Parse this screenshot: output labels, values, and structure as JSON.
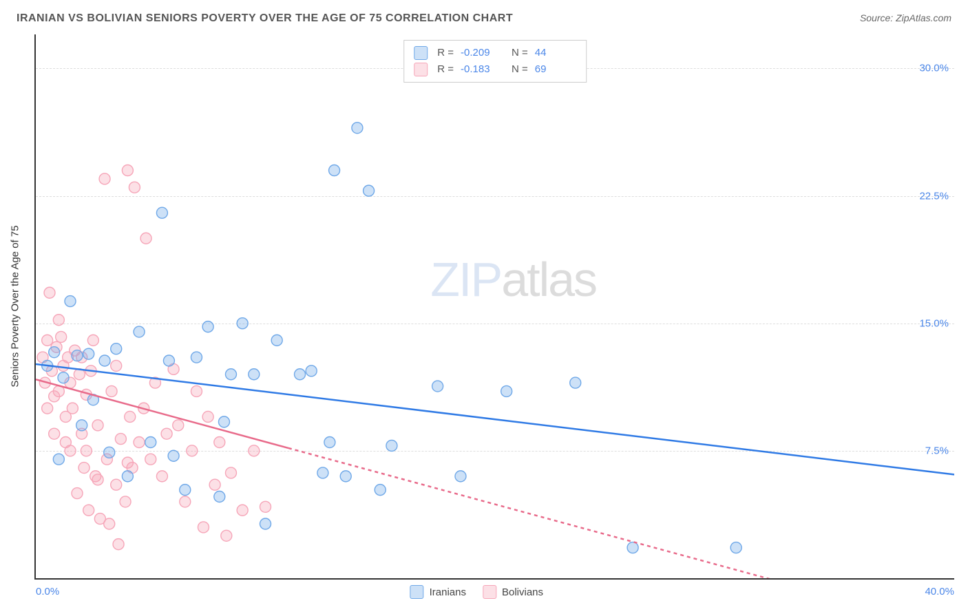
{
  "header": {
    "title": "IRANIAN VS BOLIVIAN SENIORS POVERTY OVER THE AGE OF 75 CORRELATION CHART",
    "source_prefix": "Source: ",
    "source": "ZipAtlas.com"
  },
  "watermark": {
    "zip": "ZIP",
    "atlas": "atlas"
  },
  "chart": {
    "type": "scatter",
    "ylabel": "Seniors Poverty Over the Age of 75",
    "background_color": "#ffffff",
    "grid_color": "#dddddd",
    "axis_color": "#333333",
    "tick_color": "#4a86e8",
    "xlim": [
      0,
      40
    ],
    "ylim": [
      0,
      32
    ],
    "yticks": [
      {
        "value": 7.5,
        "label": "7.5%"
      },
      {
        "value": 15.0,
        "label": "15.0%"
      },
      {
        "value": 22.5,
        "label": "22.5%"
      },
      {
        "value": 30.0,
        "label": "30.0%"
      }
    ],
    "xtick_left": "0.0%",
    "xtick_right": "40.0%",
    "marker_radius": 8,
    "marker_fill_opacity": 0.35,
    "marker_stroke_width": 1.4,
    "trendline_width": 2.5,
    "series": {
      "iranians": {
        "label": "Iranians",
        "color": "#6fa8e8",
        "line_color": "#2f7ae5",
        "R": "-0.209",
        "N": "44",
        "points": [
          [
            0.5,
            12.5
          ],
          [
            0.8,
            13.3
          ],
          [
            1.0,
            7.0
          ],
          [
            1.2,
            11.8
          ],
          [
            1.5,
            16.3
          ],
          [
            1.8,
            13.1
          ],
          [
            2.0,
            9.0
          ],
          [
            2.3,
            13.2
          ],
          [
            2.5,
            10.5
          ],
          [
            3.0,
            12.8
          ],
          [
            3.2,
            7.4
          ],
          [
            3.5,
            13.5
          ],
          [
            4.0,
            6.0
          ],
          [
            4.5,
            14.5
          ],
          [
            5.0,
            8.0
          ],
          [
            5.5,
            21.5
          ],
          [
            5.8,
            12.8
          ],
          [
            6.0,
            7.2
          ],
          [
            6.5,
            5.2
          ],
          [
            7.0,
            13.0
          ],
          [
            7.5,
            14.8
          ],
          [
            8.0,
            4.8
          ],
          [
            8.5,
            12.0
          ],
          [
            9.0,
            15.0
          ],
          [
            9.5,
            12.0
          ],
          [
            10.0,
            3.2
          ],
          [
            10.5,
            14.0
          ],
          [
            11.5,
            12.0
          ],
          [
            12.0,
            12.2
          ],
          [
            12.5,
            6.2
          ],
          [
            13.0,
            24.0
          ],
          [
            13.5,
            6.0
          ],
          [
            14.0,
            26.5
          ],
          [
            14.5,
            22.8
          ],
          [
            15.0,
            5.2
          ],
          [
            15.5,
            7.8
          ],
          [
            17.5,
            11.3
          ],
          [
            18.5,
            6.0
          ],
          [
            20.5,
            11.0
          ],
          [
            23.5,
            11.5
          ],
          [
            26.0,
            1.8
          ],
          [
            30.5,
            1.8
          ],
          [
            8.2,
            9.2
          ],
          [
            12.8,
            8.0
          ]
        ],
        "trendline": {
          "y0": 12.6,
          "y1": 6.1,
          "x0": 0,
          "x1": 40,
          "solid_until": 40
        }
      },
      "bolivians": {
        "label": "Bolivians",
        "color": "#f6a5b8",
        "line_color": "#e86a8a",
        "R": "-0.183",
        "N": "69",
        "points": [
          [
            0.3,
            13.0
          ],
          [
            0.4,
            11.5
          ],
          [
            0.5,
            14.0
          ],
          [
            0.6,
            16.8
          ],
          [
            0.7,
            12.2
          ],
          [
            0.8,
            10.7
          ],
          [
            0.9,
            13.6
          ],
          [
            1.0,
            11.0
          ],
          [
            1.1,
            14.2
          ],
          [
            1.2,
            12.5
          ],
          [
            1.3,
            9.5
          ],
          [
            1.4,
            13.0
          ],
          [
            1.5,
            7.5
          ],
          [
            1.6,
            10.0
          ],
          [
            1.7,
            13.4
          ],
          [
            1.8,
            5.0
          ],
          [
            1.9,
            12.0
          ],
          [
            2.0,
            8.5
          ],
          [
            2.1,
            6.5
          ],
          [
            2.2,
            10.8
          ],
          [
            2.3,
            4.0
          ],
          [
            2.4,
            12.2
          ],
          [
            2.5,
            14.0
          ],
          [
            2.6,
            6.0
          ],
          [
            2.7,
            9.0
          ],
          [
            2.8,
            3.5
          ],
          [
            3.0,
            23.5
          ],
          [
            3.1,
            7.0
          ],
          [
            3.2,
            3.2
          ],
          [
            3.3,
            11.0
          ],
          [
            3.5,
            5.5
          ],
          [
            3.6,
            2.0
          ],
          [
            3.7,
            8.2
          ],
          [
            3.9,
            4.5
          ],
          [
            4.0,
            24.0
          ],
          [
            4.1,
            9.5
          ],
          [
            4.2,
            6.5
          ],
          [
            4.3,
            23.0
          ],
          [
            4.5,
            8.0
          ],
          [
            4.7,
            10.0
          ],
          [
            4.8,
            20.0
          ],
          [
            5.0,
            7.0
          ],
          [
            5.2,
            11.5
          ],
          [
            5.5,
            6.0
          ],
          [
            5.7,
            8.5
          ],
          [
            6.0,
            12.3
          ],
          [
            6.2,
            9.0
          ],
          [
            6.5,
            4.5
          ],
          [
            6.8,
            7.5
          ],
          [
            7.0,
            11.0
          ],
          [
            7.3,
            3.0
          ],
          [
            7.5,
            9.5
          ],
          [
            7.8,
            5.5
          ],
          [
            8.0,
            8.0
          ],
          [
            8.3,
            2.5
          ],
          [
            8.5,
            6.2
          ],
          [
            9.0,
            4.0
          ],
          [
            9.5,
            7.5
          ],
          [
            10.0,
            4.2
          ],
          [
            1.0,
            15.2
          ],
          [
            1.3,
            8.0
          ],
          [
            2.0,
            13.0
          ],
          [
            2.7,
            5.8
          ],
          [
            3.5,
            12.5
          ],
          [
            4.0,
            6.8
          ],
          [
            0.5,
            10.0
          ],
          [
            0.8,
            8.5
          ],
          [
            1.5,
            11.5
          ],
          [
            2.2,
            7.5
          ]
        ],
        "trendline": {
          "y0": 11.7,
          "y1": -3.0,
          "x0": 0,
          "x1": 40,
          "solid_until": 11
        }
      }
    }
  },
  "legend_top_labels": {
    "R": "R =",
    "N": "N ="
  }
}
